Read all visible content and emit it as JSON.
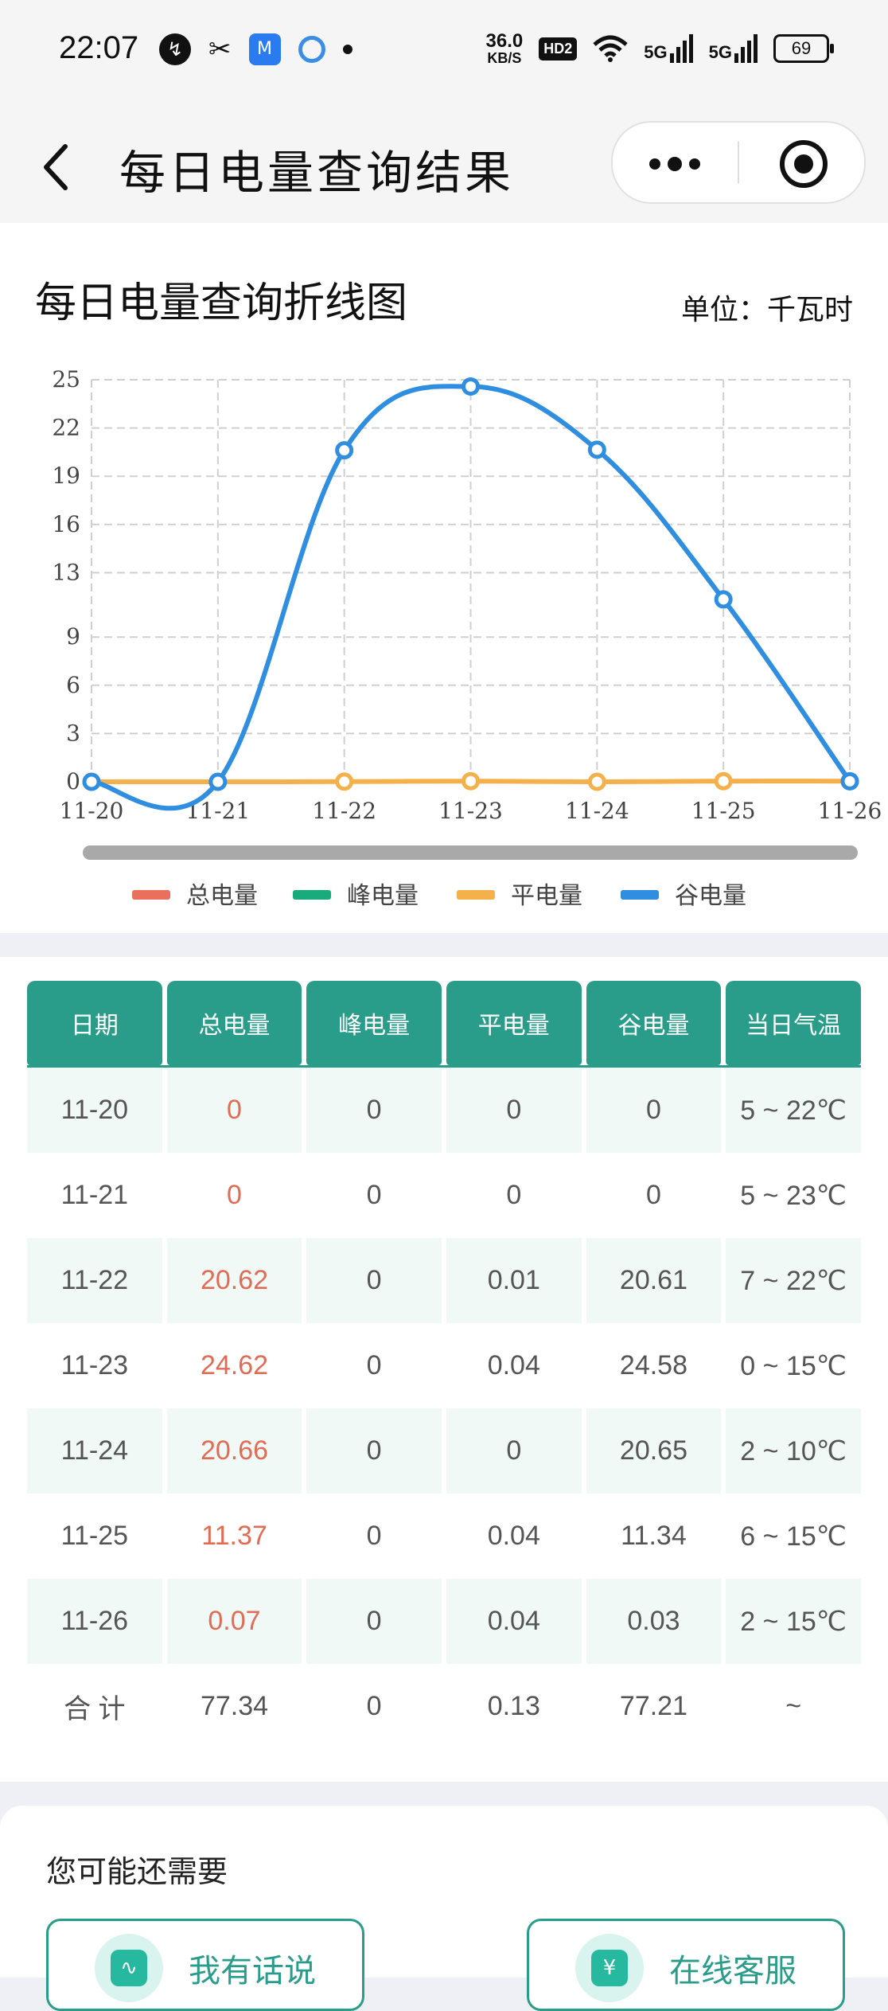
{
  "status_bar": {
    "time": "22:07",
    "net_speed_value": "36.0",
    "net_speed_unit": "KB/S",
    "hd_label": "HD2",
    "signal_1": "5G",
    "signal_2": "5G",
    "battery": "69",
    "icons": [
      "app-icon-1",
      "scissors-icon",
      "app-icon-2",
      "app-icon-3",
      "dot-icon",
      "wifi-icon",
      "signal-icon",
      "signal-icon",
      "battery-icon"
    ]
  },
  "navbar": {
    "back_icon": "chevron-left-icon",
    "title": "每日电量查询结果",
    "more_icon": "more-dots-icon",
    "close_icon": "target-icon"
  },
  "chart_card": {
    "title": "每日电量查询折线图",
    "unit": "单位：千瓦时"
  },
  "chart_data": {
    "type": "line",
    "title": "每日电量查询折线图",
    "categories": [
      "11-20",
      "11-21",
      "11-22",
      "11-23",
      "11-24",
      "11-25",
      "11-26"
    ],
    "y_ticks": [
      0,
      3,
      6,
      9,
      13,
      16,
      19,
      22,
      25
    ],
    "ylim": [
      0,
      25
    ],
    "grid": true,
    "legend_position": "bottom",
    "smooth": true,
    "series": [
      {
        "name": "总电量",
        "color": "#e8705c",
        "values": null
      },
      {
        "name": "峰电量",
        "color": "#1aab7d",
        "values": null
      },
      {
        "name": "平电量",
        "color": "#f4b04a",
        "values": [
          0,
          0,
          0.01,
          0.04,
          0,
          0.04,
          0.04
        ]
      },
      {
        "name": "谷电量",
        "color": "#2f8ee0",
        "values": [
          0,
          0,
          20.61,
          24.58,
          20.65,
          11.34,
          0.03
        ]
      }
    ]
  },
  "table": {
    "headers": [
      "日期",
      "总电量",
      "峰电量",
      "平电量",
      "谷电量",
      "当日气温"
    ],
    "rows": [
      [
        "11-20",
        "0",
        "0",
        "0",
        "0",
        "5 ~ 22℃"
      ],
      [
        "11-21",
        "0",
        "0",
        "0",
        "0",
        "5 ~ 23℃"
      ],
      [
        "11-22",
        "20.62",
        "0",
        "0.01",
        "20.61",
        "7 ~ 22℃"
      ],
      [
        "11-23",
        "24.62",
        "0",
        "0.04",
        "24.58",
        "0 ~ 15℃"
      ],
      [
        "11-24",
        "20.66",
        "0",
        "0",
        "20.65",
        "2 ~ 10℃"
      ],
      [
        "11-25",
        "11.37",
        "0",
        "0.04",
        "11.34",
        "6 ~ 15℃"
      ],
      [
        "11-26",
        "0.07",
        "0",
        "0.04",
        "0.03",
        "2 ~ 15℃"
      ]
    ],
    "summary": [
      "合 计",
      "77.34",
      "0",
      "0.13",
      "77.21",
      "~"
    ]
  },
  "more": {
    "title": "您可能还需要",
    "buttons": [
      {
        "label": "我有话说",
        "icon": "heartbeat-icon"
      },
      {
        "label": "在线客服",
        "icon": "clipboard-yen-icon"
      }
    ]
  },
  "colors": {
    "accent": "#2a9d8a",
    "total_text": "#e06c55",
    "stripe": "#f1f9f7"
  }
}
